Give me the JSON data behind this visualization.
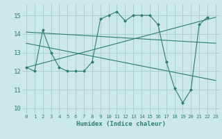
{
  "xlabel": "Humidex (Indice chaleur)",
  "background_color": "#cce8e8",
  "grid_color": "#aacece",
  "line_color": "#2e7d6e",
  "xlim": [
    -0.5,
    23.5
  ],
  "ylim": [
    9.7,
    15.6
  ],
  "yticks": [
    10,
    11,
    12,
    13,
    14,
    15
  ],
  "xticks": [
    0,
    1,
    2,
    3,
    4,
    5,
    6,
    7,
    8,
    9,
    10,
    11,
    12,
    13,
    14,
    15,
    16,
    17,
    18,
    19,
    20,
    21,
    22,
    23
  ],
  "series": [
    {
      "x": [
        0,
        1,
        2,
        3,
        4,
        5,
        6,
        7,
        8,
        9,
        10,
        11,
        12,
        13,
        14,
        15,
        16,
        17,
        18,
        19,
        20,
        21,
        22
      ],
      "y": [
        12.2,
        12.0,
        14.2,
        13.0,
        12.2,
        12.0,
        12.0,
        12.0,
        12.5,
        14.8,
        15.0,
        15.2,
        14.7,
        15.0,
        15.0,
        15.0,
        14.5,
        12.5,
        11.1,
        10.3,
        11.0,
        14.5,
        14.9
      ]
    },
    {
      "x": [
        0,
        23
      ],
      "y": [
        14.1,
        13.5
      ]
    },
    {
      "x": [
        0,
        23
      ],
      "y": [
        12.2,
        14.9
      ]
    },
    {
      "x": [
        0,
        23
      ],
      "y": [
        13.5,
        11.5
      ]
    }
  ]
}
